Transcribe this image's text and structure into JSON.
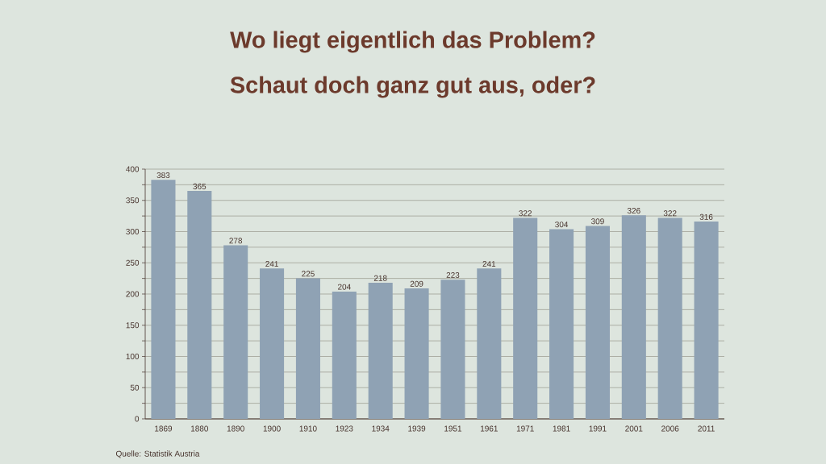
{
  "chart_data": {
    "type": "bar",
    "title": "Wo liegt eigentlich das Problem?",
    "subtitle": "Schaut doch ganz gut aus, oder?",
    "categories": [
      "1869",
      "1880",
      "1890",
      "1900",
      "1910",
      "1923",
      "1934",
      "1939",
      "1951",
      "1961",
      "1971",
      "1981",
      "1991",
      "2001",
      "2006",
      "2011"
    ],
    "values": [
      383,
      365,
      278,
      241,
      225,
      204,
      218,
      209,
      223,
      241,
      322,
      304,
      309,
      326,
      322,
      316
    ],
    "color": "#8fa2b4",
    "data_labels": true,
    "grid": "y",
    "ylim": [
      0,
      400
    ],
    "yticks": [
      0,
      {
        "value": 25,
        "label": null
      },
      50,
      {
        "value": 75,
        "label": null
      },
      100,
      {
        "value": 125,
        "label": null
      },
      150,
      {
        "value": 175,
        "label": null
      },
      200,
      {
        "value": 225,
        "label": null
      },
      250,
      {
        "value": 275,
        "label": null
      },
      300,
      {
        "value": 325,
        "label": null
      },
      350,
      {
        "value": 375,
        "label": null
      },
      400
    ],
    "annotations": [
      "Quelle: Statistik Austria"
    ]
  }
}
